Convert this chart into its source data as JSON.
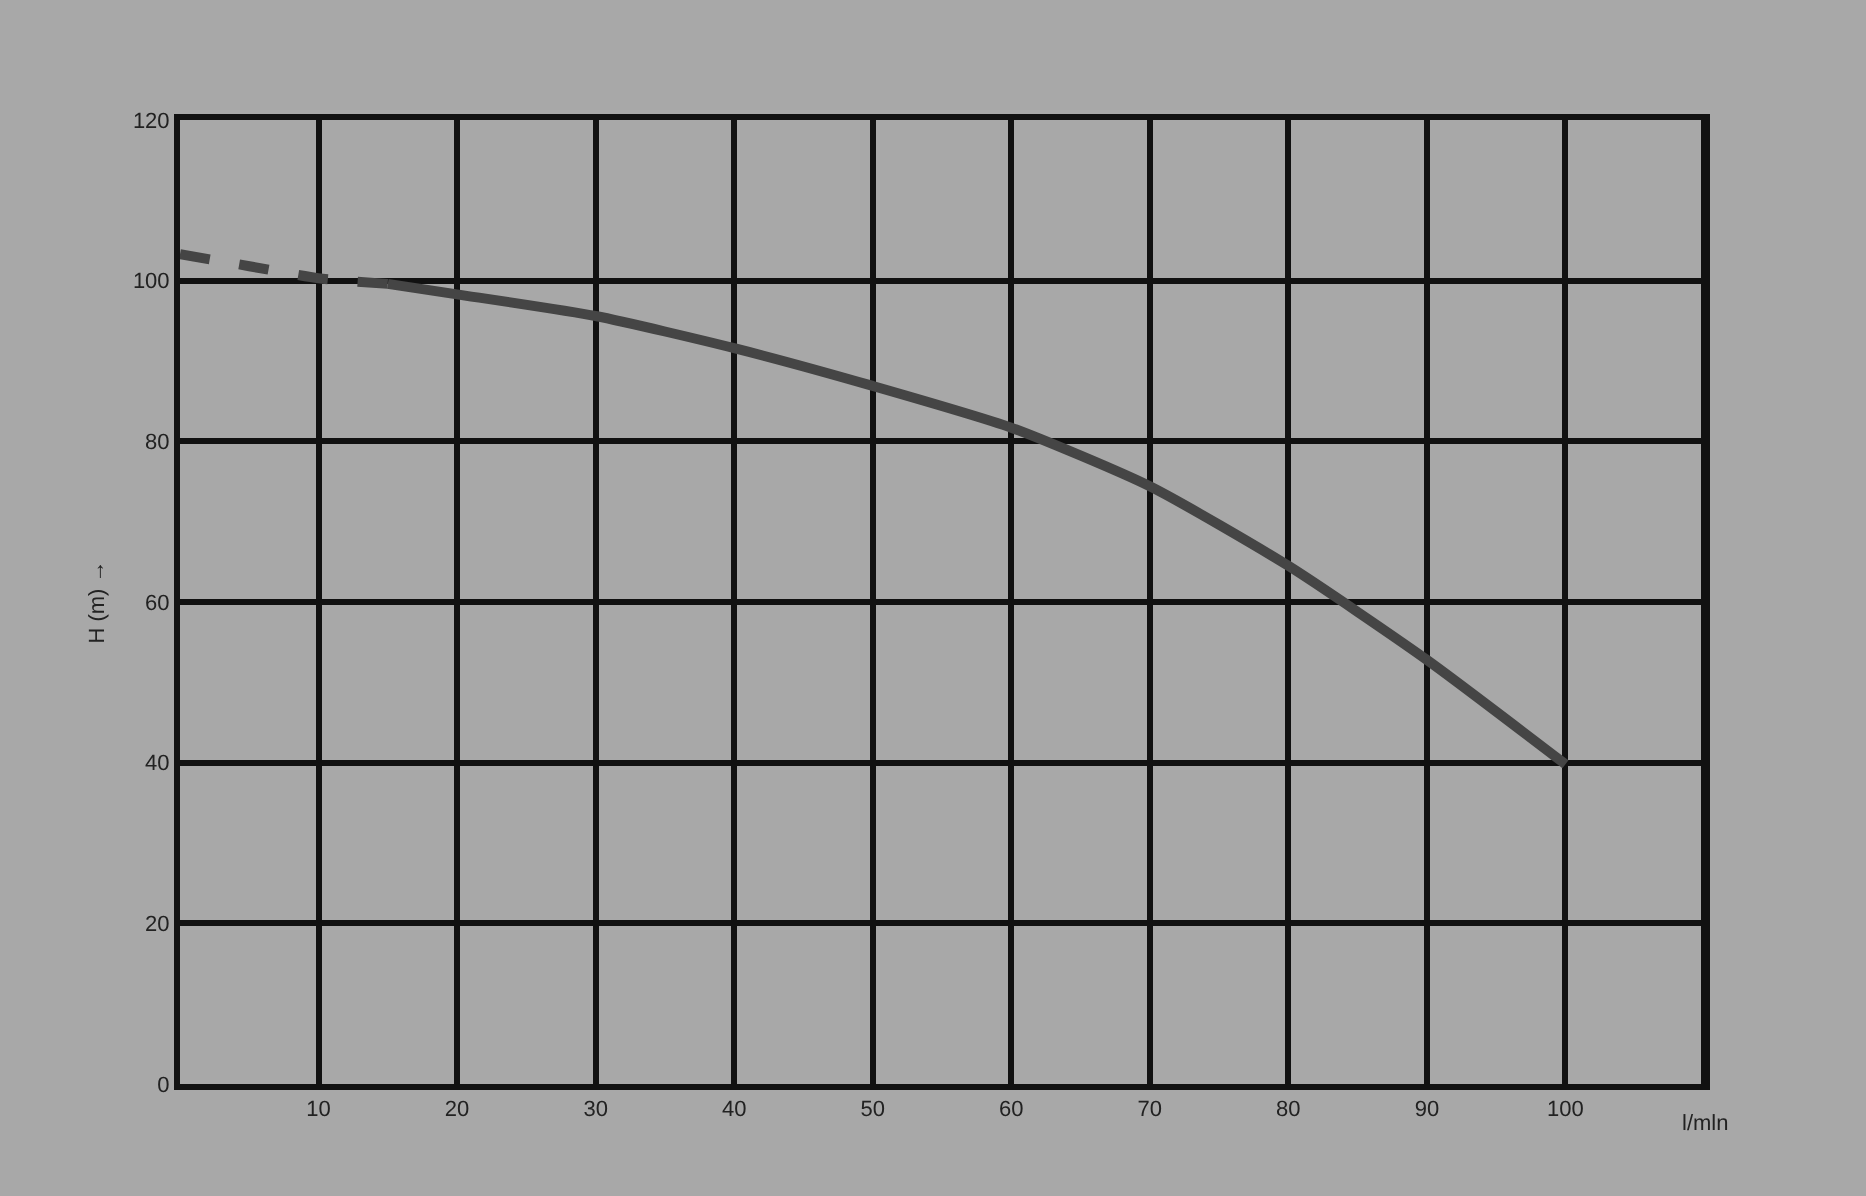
{
  "chart_data": {
    "type": "line",
    "xlabel": "l/mln",
    "ylabel": "H (m) →",
    "xlim": [
      0,
      110
    ],
    "ylim": [
      0,
      120
    ],
    "xticks": [
      10,
      20,
      30,
      40,
      50,
      60,
      70,
      80,
      90,
      100
    ],
    "yticks": [
      0,
      20,
      40,
      60,
      80,
      100,
      120
    ],
    "grid": true,
    "marker": "none",
    "series": [
      {
        "color": "#454545",
        "line_style": "dashed",
        "x": [
          0,
          5,
          10,
          15
        ],
        "values": [
          103.3,
          101.8,
          100.3,
          99.6
        ]
      },
      {
        "color": "#454545",
        "line_style": "solid",
        "x": [
          15,
          20,
          30,
          40,
          50,
          60,
          70,
          80,
          90,
          100
        ],
        "values": [
          99.6,
          98.3,
          95.6,
          91.6,
          86.9,
          81.7,
          74.4,
          64.5,
          52.8,
          39.8
        ]
      }
    ]
  }
}
